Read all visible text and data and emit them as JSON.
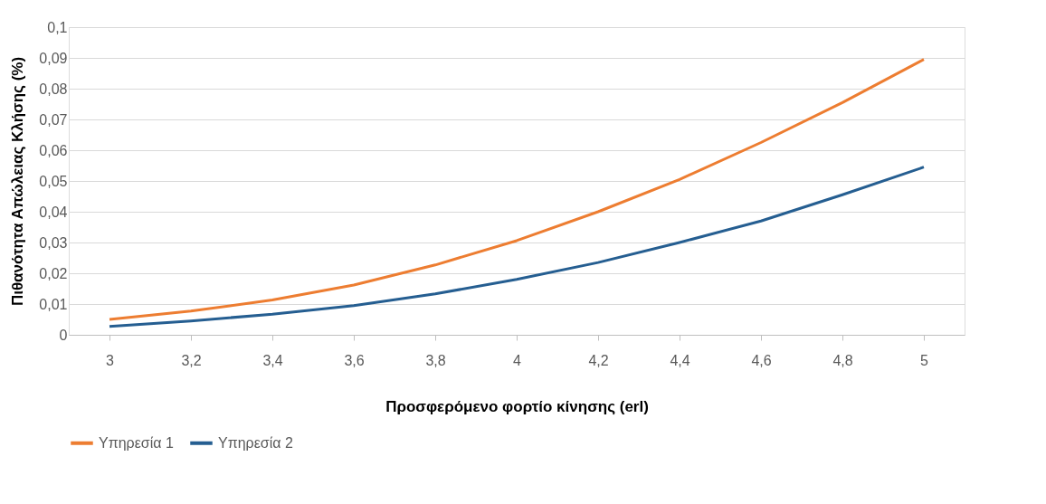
{
  "chart_data": {
    "type": "line",
    "xlabel": "Προσφερόμενο φορτίο κίνησης (erl)",
    "ylabel": "Πιθανότητα Απώλειας Κλήσης (%)",
    "categories": [
      "3",
      "3,2",
      "3,4",
      "3,6",
      "3,8",
      "4",
      "4,2",
      "4,4",
      "4,6",
      "4,8",
      "5"
    ],
    "series": [
      {
        "name": "Υπηρεσία 1",
        "color": "#ed7d31",
        "values": [
          0.005,
          0.0077,
          0.0113,
          0.0162,
          0.0227,
          0.0306,
          0.04,
          0.0505,
          0.0625,
          0.0755,
          0.0895
        ]
      },
      {
        "name": "Υπηρεσία 2",
        "color": "#255e91",
        "values": [
          0.0027,
          0.0045,
          0.0067,
          0.0095,
          0.0133,
          0.018,
          0.0235,
          0.03,
          0.037,
          0.0455,
          0.0545
        ]
      }
    ],
    "ylim": [
      0,
      0.1
    ],
    "yticks": [
      0,
      {
        "value": 0.01,
        "label": "0,01"
      },
      {
        "value": 0.02,
        "label": "0,02"
      },
      {
        "value": 0.03,
        "label": "0,03"
      },
      {
        "value": 0.04,
        "label": "0,04"
      },
      {
        "value": 0.05,
        "label": "0,05"
      },
      {
        "value": 0.06,
        "label": "0,06"
      },
      {
        "value": 0.07,
        "label": "0,07"
      },
      {
        "value": 0.08,
        "label": "0,08"
      },
      {
        "value": 0.09,
        "label": "0,09"
      },
      {
        "value": 0.1,
        "label": "0,1"
      }
    ],
    "grid": "y",
    "legend": "bottom",
    "marker": "none",
    "line_style": "solid"
  }
}
